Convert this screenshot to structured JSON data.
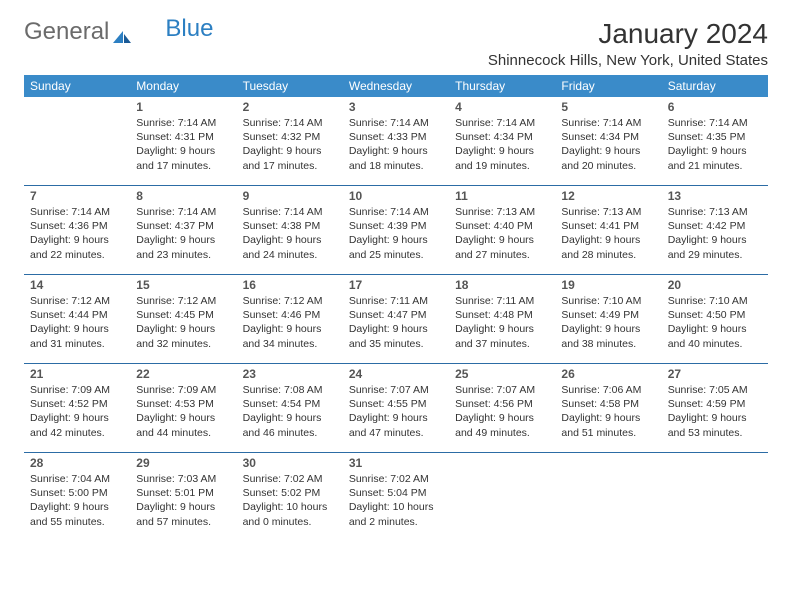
{
  "logo": {
    "text_gray": "General",
    "text_blue": "Blue"
  },
  "title": "January 2024",
  "location": "Shinnecock Hills, New York, United States",
  "day_names": [
    "Sunday",
    "Monday",
    "Tuesday",
    "Wednesday",
    "Thursday",
    "Friday",
    "Saturday"
  ],
  "colors": {
    "header_bg": "#3a8bc9",
    "header_text": "#ffffff",
    "week_divider": "#2c6ca5",
    "logo_gray": "#6b6b6b",
    "logo_blue": "#2c7fc2",
    "text": "#333333",
    "background": "#ffffff"
  },
  "layout": {
    "columns": 7,
    "rows": 5,
    "first_day_column_index": 1
  },
  "days": [
    {
      "n": "1",
      "sunrise": "7:14 AM",
      "sunset": "4:31 PM",
      "daylight": "9 hours and 17 minutes."
    },
    {
      "n": "2",
      "sunrise": "7:14 AM",
      "sunset": "4:32 PM",
      "daylight": "9 hours and 17 minutes."
    },
    {
      "n": "3",
      "sunrise": "7:14 AM",
      "sunset": "4:33 PM",
      "daylight": "9 hours and 18 minutes."
    },
    {
      "n": "4",
      "sunrise": "7:14 AM",
      "sunset": "4:34 PM",
      "daylight": "9 hours and 19 minutes."
    },
    {
      "n": "5",
      "sunrise": "7:14 AM",
      "sunset": "4:34 PM",
      "daylight": "9 hours and 20 minutes."
    },
    {
      "n": "6",
      "sunrise": "7:14 AM",
      "sunset": "4:35 PM",
      "daylight": "9 hours and 21 minutes."
    },
    {
      "n": "7",
      "sunrise": "7:14 AM",
      "sunset": "4:36 PM",
      "daylight": "9 hours and 22 minutes."
    },
    {
      "n": "8",
      "sunrise": "7:14 AM",
      "sunset": "4:37 PM",
      "daylight": "9 hours and 23 minutes."
    },
    {
      "n": "9",
      "sunrise": "7:14 AM",
      "sunset": "4:38 PM",
      "daylight": "9 hours and 24 minutes."
    },
    {
      "n": "10",
      "sunrise": "7:14 AM",
      "sunset": "4:39 PM",
      "daylight": "9 hours and 25 minutes."
    },
    {
      "n": "11",
      "sunrise": "7:13 AM",
      "sunset": "4:40 PM",
      "daylight": "9 hours and 27 minutes."
    },
    {
      "n": "12",
      "sunrise": "7:13 AM",
      "sunset": "4:41 PM",
      "daylight": "9 hours and 28 minutes."
    },
    {
      "n": "13",
      "sunrise": "7:13 AM",
      "sunset": "4:42 PM",
      "daylight": "9 hours and 29 minutes."
    },
    {
      "n": "14",
      "sunrise": "7:12 AM",
      "sunset": "4:44 PM",
      "daylight": "9 hours and 31 minutes."
    },
    {
      "n": "15",
      "sunrise": "7:12 AM",
      "sunset": "4:45 PM",
      "daylight": "9 hours and 32 minutes."
    },
    {
      "n": "16",
      "sunrise": "7:12 AM",
      "sunset": "4:46 PM",
      "daylight": "9 hours and 34 minutes."
    },
    {
      "n": "17",
      "sunrise": "7:11 AM",
      "sunset": "4:47 PM",
      "daylight": "9 hours and 35 minutes."
    },
    {
      "n": "18",
      "sunrise": "7:11 AM",
      "sunset": "4:48 PM",
      "daylight": "9 hours and 37 minutes."
    },
    {
      "n": "19",
      "sunrise": "7:10 AM",
      "sunset": "4:49 PM",
      "daylight": "9 hours and 38 minutes."
    },
    {
      "n": "20",
      "sunrise": "7:10 AM",
      "sunset": "4:50 PM",
      "daylight": "9 hours and 40 minutes."
    },
    {
      "n": "21",
      "sunrise": "7:09 AM",
      "sunset": "4:52 PM",
      "daylight": "9 hours and 42 minutes."
    },
    {
      "n": "22",
      "sunrise": "7:09 AM",
      "sunset": "4:53 PM",
      "daylight": "9 hours and 44 minutes."
    },
    {
      "n": "23",
      "sunrise": "7:08 AM",
      "sunset": "4:54 PM",
      "daylight": "9 hours and 46 minutes."
    },
    {
      "n": "24",
      "sunrise": "7:07 AM",
      "sunset": "4:55 PM",
      "daylight": "9 hours and 47 minutes."
    },
    {
      "n": "25",
      "sunrise": "7:07 AM",
      "sunset": "4:56 PM",
      "daylight": "9 hours and 49 minutes."
    },
    {
      "n": "26",
      "sunrise": "7:06 AM",
      "sunset": "4:58 PM",
      "daylight": "9 hours and 51 minutes."
    },
    {
      "n": "27",
      "sunrise": "7:05 AM",
      "sunset": "4:59 PM",
      "daylight": "9 hours and 53 minutes."
    },
    {
      "n": "28",
      "sunrise": "7:04 AM",
      "sunset": "5:00 PM",
      "daylight": "9 hours and 55 minutes."
    },
    {
      "n": "29",
      "sunrise": "7:03 AM",
      "sunset": "5:01 PM",
      "daylight": "9 hours and 57 minutes."
    },
    {
      "n": "30",
      "sunrise": "7:02 AM",
      "sunset": "5:02 PM",
      "daylight": "10 hours and 0 minutes."
    },
    {
      "n": "31",
      "sunrise": "7:02 AM",
      "sunset": "5:04 PM",
      "daylight": "10 hours and 2 minutes."
    }
  ],
  "labels": {
    "sunrise": "Sunrise: ",
    "sunset": "Sunset: ",
    "daylight": "Daylight: "
  }
}
